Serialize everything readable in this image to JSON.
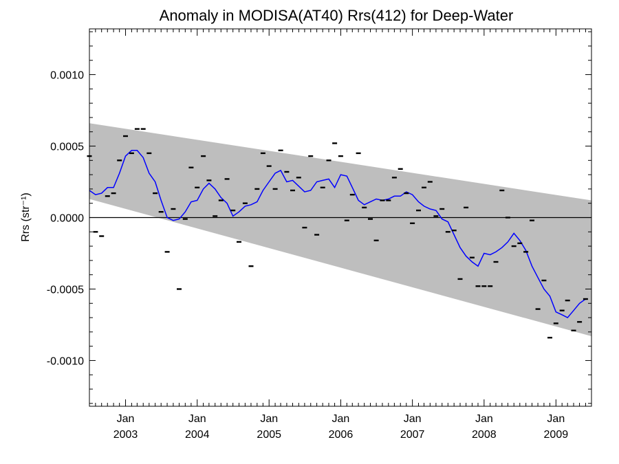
{
  "chart_data": {
    "type": "line",
    "title": "Anomaly in MODISA(AT40) Rrs(412) for Deep-Water",
    "ylabel": "Rrs (str⁻¹)",
    "xlabel": "",
    "ylim": [
      -0.00132,
      0.00132
    ],
    "xlim": [
      "2002-07-01",
      "2009-07-01"
    ],
    "grid": false,
    "y_ticks": [
      {
        "value": 0.001,
        "label": "0.0010"
      },
      {
        "value": 0.0005,
        "label": "0.0005"
      },
      {
        "value": 0.0,
        "label": "0.0000"
      },
      {
        "value": -0.0005,
        "label": "-0.0005"
      },
      {
        "value": -0.001,
        "label": "-0.0010"
      }
    ],
    "x_ticks": [
      {
        "date": "2003-01-01",
        "line1": "Jan",
        "line2": "2003"
      },
      {
        "date": "2004-01-01",
        "line1": "Jan",
        "line2": "2004"
      },
      {
        "date": "2005-01-01",
        "line1": "Jan",
        "line2": "2005"
      },
      {
        "date": "2006-01-01",
        "line1": "Jan",
        "line2": "2006"
      },
      {
        "date": "2007-01-01",
        "line1": "Jan",
        "line2": "2007"
      },
      {
        "date": "2008-01-01",
        "line1": "Jan",
        "line2": "2008"
      },
      {
        "date": "2009-01-01",
        "line1": "Jan",
        "line2": "2009"
      }
    ],
    "band": {
      "upper": [
        [
          "2002-07-01",
          0.00066
        ],
        [
          "2009-07-01",
          0.00012
        ]
      ],
      "lower": [
        [
          "2002-07-01",
          0.00013
        ],
        [
          "2009-07-01",
          -0.00083
        ]
      ],
      "color": "#bebebe"
    },
    "zero_line": {
      "value": 0.0,
      "color": "#000000"
    },
    "series": [
      {
        "type": "scatter",
        "marker": "dash",
        "color": "#000000",
        "points": [
          [
            "2002-07-01",
            0.00043
          ],
          [
            "2002-08-01",
            -0.0001
          ],
          [
            "2002-09-01",
            -0.00013
          ],
          [
            "2002-10-01",
            0.00015
          ],
          [
            "2002-11-01",
            0.00017
          ],
          [
            "2002-12-01",
            0.0004
          ],
          [
            "2003-01-01",
            0.00057
          ],
          [
            "2003-02-01",
            0.00045
          ],
          [
            "2003-03-01",
            0.00062
          ],
          [
            "2003-04-01",
            0.00062
          ],
          [
            "2003-05-01",
            0.00045
          ],
          [
            "2003-06-01",
            0.00017
          ],
          [
            "2003-07-01",
            4e-05
          ],
          [
            "2003-08-01",
            -0.00024
          ],
          [
            "2003-09-01",
            6e-05
          ],
          [
            "2003-10-01",
            -0.0005
          ],
          [
            "2003-11-01",
            -1e-05
          ],
          [
            "2003-12-01",
            0.00035
          ],
          [
            "2004-01-01",
            0.00021
          ],
          [
            "2004-02-01",
            0.00043
          ],
          [
            "2004-03-01",
            0.00026
          ],
          [
            "2004-04-01",
            1e-05
          ],
          [
            "2004-05-01",
            0.00012
          ],
          [
            "2004-06-01",
            0.00027
          ],
          [
            "2004-07-01",
            5e-05
          ],
          [
            "2004-08-01",
            -0.00017
          ],
          [
            "2004-09-01",
            0.0001
          ],
          [
            "2004-10-01",
            -0.00034
          ],
          [
            "2004-11-01",
            0.0002
          ],
          [
            "2004-12-01",
            0.00045
          ],
          [
            "2005-01-01",
            0.00036
          ],
          [
            "2005-02-01",
            0.0002
          ],
          [
            "2005-03-01",
            0.00047
          ],
          [
            "2005-04-01",
            0.00032
          ],
          [
            "2005-05-01",
            0.00019
          ],
          [
            "2005-06-01",
            0.00028
          ],
          [
            "2005-07-01",
            -7e-05
          ],
          [
            "2005-08-01",
            0.00043
          ],
          [
            "2005-09-01",
            -0.00012
          ],
          [
            "2005-10-01",
            0.00021
          ],
          [
            "2005-11-01",
            0.0004
          ],
          [
            "2005-12-01",
            0.00052
          ],
          [
            "2006-01-01",
            0.00043
          ],
          [
            "2006-02-01",
            -2e-05
          ],
          [
            "2006-03-01",
            0.00016
          ],
          [
            "2006-04-01",
            0.00045
          ],
          [
            "2006-05-01",
            7e-05
          ],
          [
            "2006-06-01",
            -1e-05
          ],
          [
            "2006-07-01",
            -0.00016
          ],
          [
            "2006-08-01",
            0.00012
          ],
          [
            "2006-09-01",
            0.00012
          ],
          [
            "2006-10-01",
            0.00028
          ],
          [
            "2006-11-01",
            0.00034
          ],
          [
            "2006-12-01",
            0.00017
          ],
          [
            "2007-01-01",
            -4e-05
          ],
          [
            "2007-02-01",
            5e-05
          ],
          [
            "2007-03-01",
            0.00021
          ],
          [
            "2007-04-01",
            0.00025
          ],
          [
            "2007-05-01",
            1e-05
          ],
          [
            "2007-06-01",
            6e-05
          ],
          [
            "2007-07-01",
            -0.0001
          ],
          [
            "2007-08-01",
            -9e-05
          ],
          [
            "2007-09-01",
            -0.00043
          ],
          [
            "2007-10-01",
            7e-05
          ],
          [
            "2007-11-01",
            -0.00028
          ],
          [
            "2007-12-01",
            -0.00048
          ],
          [
            "2008-01-01",
            -0.00048
          ],
          [
            "2008-02-01",
            -0.00048
          ],
          [
            "2008-03-01",
            -0.00031
          ],
          [
            "2008-04-01",
            0.00019
          ],
          [
            "2008-05-01",
            0.0
          ],
          [
            "2008-06-01",
            -0.0002
          ],
          [
            "2008-07-01",
            -0.00018
          ],
          [
            "2008-08-01",
            -0.00024
          ],
          [
            "2008-09-01",
            -2e-05
          ],
          [
            "2008-10-01",
            -0.00064
          ],
          [
            "2008-11-01",
            -0.00044
          ],
          [
            "2008-12-01",
            -0.00084
          ],
          [
            "2009-01-01",
            -0.00074
          ],
          [
            "2009-02-01",
            -0.00065
          ],
          [
            "2009-03-01",
            -0.00058
          ],
          [
            "2009-04-01",
            -0.00079
          ],
          [
            "2009-05-01",
            -0.00073
          ],
          [
            "2009-06-01",
            -0.00057
          ]
        ]
      },
      {
        "type": "line",
        "color": "#0000ff",
        "points": [
          [
            "2002-07-01",
            0.00019
          ],
          [
            "2002-08-01",
            0.00016
          ],
          [
            "2002-09-01",
            0.00017
          ],
          [
            "2002-10-01",
            0.00021
          ],
          [
            "2002-11-01",
            0.00021
          ],
          [
            "2002-12-01",
            0.00031
          ],
          [
            "2003-01-01",
            0.00043
          ],
          [
            "2003-02-01",
            0.00047
          ],
          [
            "2003-03-01",
            0.00047
          ],
          [
            "2003-04-01",
            0.00042
          ],
          [
            "2003-05-01",
            0.00031
          ],
          [
            "2003-06-01",
            0.00025
          ],
          [
            "2003-07-01",
            0.00012
          ],
          [
            "2003-08-01",
            0.0
          ],
          [
            "2003-09-01",
            -2e-05
          ],
          [
            "2003-10-01",
            -1e-05
          ],
          [
            "2003-11-01",
            4e-05
          ],
          [
            "2003-12-01",
            0.00011
          ],
          [
            "2004-01-01",
            0.00012
          ],
          [
            "2004-02-01",
            0.0002
          ],
          [
            "2004-03-01",
            0.00024
          ],
          [
            "2004-04-01",
            0.0002
          ],
          [
            "2004-05-01",
            0.00014
          ],
          [
            "2004-06-01",
            0.0001
          ],
          [
            "2004-07-01",
            1e-05
          ],
          [
            "2004-08-01",
            4e-05
          ],
          [
            "2004-09-01",
            8e-05
          ],
          [
            "2004-10-01",
            9e-05
          ],
          [
            "2004-11-01",
            0.00011
          ],
          [
            "2004-12-01",
            0.00019
          ],
          [
            "2005-01-01",
            0.00025
          ],
          [
            "2005-02-01",
            0.00031
          ],
          [
            "2005-03-01",
            0.00033
          ],
          [
            "2005-04-01",
            0.00025
          ],
          [
            "2005-05-01",
            0.00026
          ],
          [
            "2005-06-01",
            0.00022
          ],
          [
            "2005-07-01",
            0.00018
          ],
          [
            "2005-08-01",
            0.00019
          ],
          [
            "2005-09-01",
            0.00025
          ],
          [
            "2005-10-01",
            0.00026
          ],
          [
            "2005-11-01",
            0.00027
          ],
          [
            "2005-12-01",
            0.00021
          ],
          [
            "2006-01-01",
            0.0003
          ],
          [
            "2006-02-01",
            0.00029
          ],
          [
            "2006-03-01",
            0.00021
          ],
          [
            "2006-04-01",
            0.00012
          ],
          [
            "2006-05-01",
            9e-05
          ],
          [
            "2006-06-01",
            0.00011
          ],
          [
            "2006-07-01",
            0.00013
          ],
          [
            "2006-08-01",
            0.00012
          ],
          [
            "2006-09-01",
            0.00013
          ],
          [
            "2006-10-01",
            0.00015
          ],
          [
            "2006-11-01",
            0.00015
          ],
          [
            "2006-12-01",
            0.00018
          ],
          [
            "2007-01-01",
            0.00016
          ],
          [
            "2007-02-01",
            0.00011
          ],
          [
            "2007-03-01",
            8e-05
          ],
          [
            "2007-04-01",
            6e-05
          ],
          [
            "2007-05-01",
            5e-05
          ],
          [
            "2007-06-01",
            -1e-05
          ],
          [
            "2007-07-01",
            -3e-05
          ],
          [
            "2007-08-01",
            -0.00012
          ],
          [
            "2007-09-01",
            -0.00021
          ],
          [
            "2007-10-01",
            -0.00027
          ],
          [
            "2007-11-01",
            -0.00031
          ],
          [
            "2007-12-01",
            -0.00034
          ],
          [
            "2008-01-01",
            -0.00025
          ],
          [
            "2008-02-01",
            -0.00026
          ],
          [
            "2008-03-01",
            -0.00024
          ],
          [
            "2008-04-01",
            -0.00021
          ],
          [
            "2008-05-01",
            -0.00017
          ],
          [
            "2008-06-01",
            -0.00011
          ],
          [
            "2008-07-01",
            -0.00016
          ],
          [
            "2008-08-01",
            -0.00023
          ],
          [
            "2008-09-01",
            -0.00034
          ],
          [
            "2008-10-01",
            -0.00042
          ],
          [
            "2008-11-01",
            -0.0005
          ],
          [
            "2008-12-01",
            -0.00055
          ],
          [
            "2009-01-01",
            -0.00066
          ],
          [
            "2009-02-01",
            -0.00068
          ],
          [
            "2009-03-01",
            -0.0007
          ],
          [
            "2009-04-01",
            -0.00065
          ],
          [
            "2009-05-01",
            -0.0006
          ],
          [
            "2009-06-01",
            -0.00057
          ]
        ]
      }
    ]
  }
}
